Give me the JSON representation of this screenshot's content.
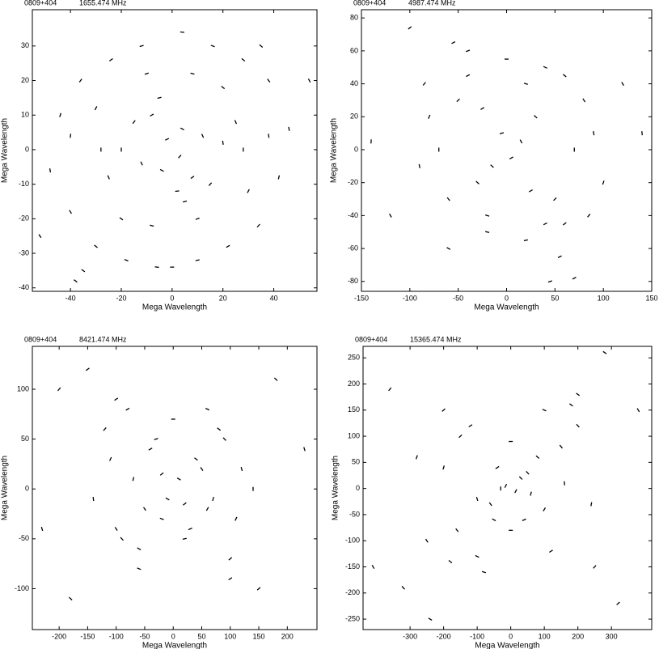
{
  "chart_data": [
    {
      "type": "scatter",
      "title": "0809+404",
      "subtitle": "1655.474 MHz",
      "x_label": "Mega Wavelength",
      "y_label": "Mega Wavelength",
      "color": "#000000",
      "xlim": [
        -55,
        57
      ],
      "ylim": [
        -41,
        40.5
      ],
      "xticks": [
        -40,
        -20,
        0,
        20,
        40
      ],
      "yticks": [
        -40,
        -30,
        -20,
        -10,
        0,
        10,
        20,
        30
      ],
      "x": [
        -48,
        -44,
        -40,
        -36,
        -30,
        -24,
        -18,
        -12,
        -6,
        4,
        10,
        16,
        22,
        28,
        34,
        38,
        42,
        46,
        -40,
        -30,
        -20,
        -10,
        10,
        20,
        30,
        38,
        -25,
        -15,
        15,
        25,
        -8,
        -4,
        4,
        8,
        0,
        -2,
        3,
        -52,
        54,
        -8,
        8,
        2,
        -20,
        20,
        -35,
        35,
        -38,
        0,
        -12,
        12,
        -28,
        28,
        -5,
        5
      ],
      "y": [
        -6,
        10,
        -18,
        20,
        -28,
        26,
        -32,
        30,
        -34,
        34,
        -32,
        30,
        -28,
        26,
        -22,
        20,
        -8,
        6,
        4,
        12,
        -20,
        22,
        -20,
        18,
        -12,
        4,
        -8,
        8,
        -10,
        8,
        10,
        -6,
        6,
        -8,
        0,
        3,
        -2,
        -25,
        20,
        -22,
        22,
        -12,
        0,
        2,
        -35,
        30,
        -38,
        -34,
        -4,
        4,
        0,
        0,
        15,
        -15
      ]
    },
    {
      "type": "scatter",
      "title": "0809+404",
      "subtitle": "4987.474 MHz",
      "x_label": "Mega Wavelength",
      "y_label": "Mega Wavelength",
      "color": "#000000",
      "xlim": [
        -150,
        150
      ],
      "ylim": [
        -86,
        85
      ],
      "xticks": [
        -150,
        -100,
        -50,
        0,
        50,
        100,
        150
      ],
      "yticks": [
        -80,
        -60,
        -40,
        -20,
        0,
        20,
        40,
        60,
        80
      ],
      "x": [
        -140,
        -120,
        -100,
        -80,
        -60,
        -40,
        -20,
        0,
        20,
        40,
        60,
        80,
        100,
        120,
        140,
        -90,
        -70,
        -50,
        -30,
        30,
        50,
        70,
        90,
        -60,
        -40,
        -20,
        20,
        40,
        60,
        -15,
        -5,
        5,
        15,
        0,
        -85,
        85,
        -25,
        25,
        55,
        -55,
        45,
        70
      ],
      "y": [
        5,
        -40,
        74,
        20,
        -30,
        45,
        -50,
        55,
        -55,
        50,
        -45,
        30,
        -20,
        40,
        10,
        -10,
        0,
        30,
        -20,
        20,
        -30,
        0,
        10,
        -60,
        60,
        -40,
        40,
        -45,
        45,
        -10,
        10,
        -5,
        5,
        0,
        40,
        -40,
        25,
        -25,
        -65,
        65,
        -80,
        -78
      ]
    },
    {
      "type": "scatter",
      "title": "0809+404",
      "subtitle": "8421.474 MHz",
      "x_label": "Mega Wavelength",
      "y_label": "Mega Wavelength",
      "color": "#000000",
      "xlim": [
        -247,
        252
      ],
      "ylim": [
        -141,
        143
      ],
      "xticks": [
        -200,
        -150,
        -100,
        -50,
        0,
        50,
        100,
        150,
        200
      ],
      "yticks": [
        -100,
        -50,
        0,
        50,
        100
      ],
      "x": [
        -230,
        -200,
        -180,
        -150,
        -120,
        -100,
        -80,
        -60,
        -40,
        -20,
        0,
        20,
        40,
        60,
        80,
        100,
        120,
        150,
        180,
        230,
        -140,
        -110,
        -90,
        -70,
        -50,
        -30,
        30,
        50,
        70,
        90,
        110,
        140,
        -20,
        -10,
        10,
        20,
        0,
        -60,
        60,
        100,
        -100
      ],
      "y": [
        -40,
        100,
        -110,
        120,
        60,
        -40,
        80,
        -60,
        40,
        -30,
        70,
        -50,
        30,
        -20,
        60,
        -70,
        20,
        -100,
        110,
        40,
        -10,
        30,
        -50,
        10,
        -20,
        50,
        -40,
        20,
        -10,
        50,
        -30,
        0,
        15,
        -10,
        10,
        -15,
        0,
        -80,
        80,
        -90,
        90
      ]
    },
    {
      "type": "scatter",
      "title": "0809+404",
      "subtitle": "15365.474 MHz",
      "x_label": "Mega Wavelength",
      "y_label": "Mega Wavelength",
      "color": "#000000",
      "xlim": [
        -440,
        420
      ],
      "ylim": [
        -270,
        272
      ],
      "xticks": [
        -300,
        -200,
        -100,
        0,
        100,
        200,
        300
      ],
      "yticks": [
        -250,
        -200,
        -150,
        -100,
        -50,
        0,
        50,
        100,
        150,
        200,
        250
      ],
      "x": [
        -410,
        -360,
        -320,
        -280,
        -240,
        -200,
        -160,
        -120,
        -80,
        -40,
        0,
        40,
        80,
        120,
        160,
        200,
        240,
        280,
        320,
        380,
        -250,
        -200,
        -150,
        -100,
        -50,
        50,
        100,
        150,
        200,
        250,
        -30,
        30,
        -60,
        60,
        0,
        -15,
        15,
        -180,
        180,
        100,
        -100
      ],
      "y": [
        -150,
        190,
        -190,
        60,
        -250,
        150,
        -80,
        120,
        -160,
        40,
        90,
        -60,
        60,
        -120,
        10,
        180,
        -30,
        260,
        -220,
        150,
        -100,
        40,
        100,
        -20,
        -60,
        30,
        -40,
        80,
        120,
        -150,
        0,
        20,
        -30,
        -10,
        -80,
        5,
        -5,
        -140,
        160,
        150,
        -130
      ]
    }
  ]
}
